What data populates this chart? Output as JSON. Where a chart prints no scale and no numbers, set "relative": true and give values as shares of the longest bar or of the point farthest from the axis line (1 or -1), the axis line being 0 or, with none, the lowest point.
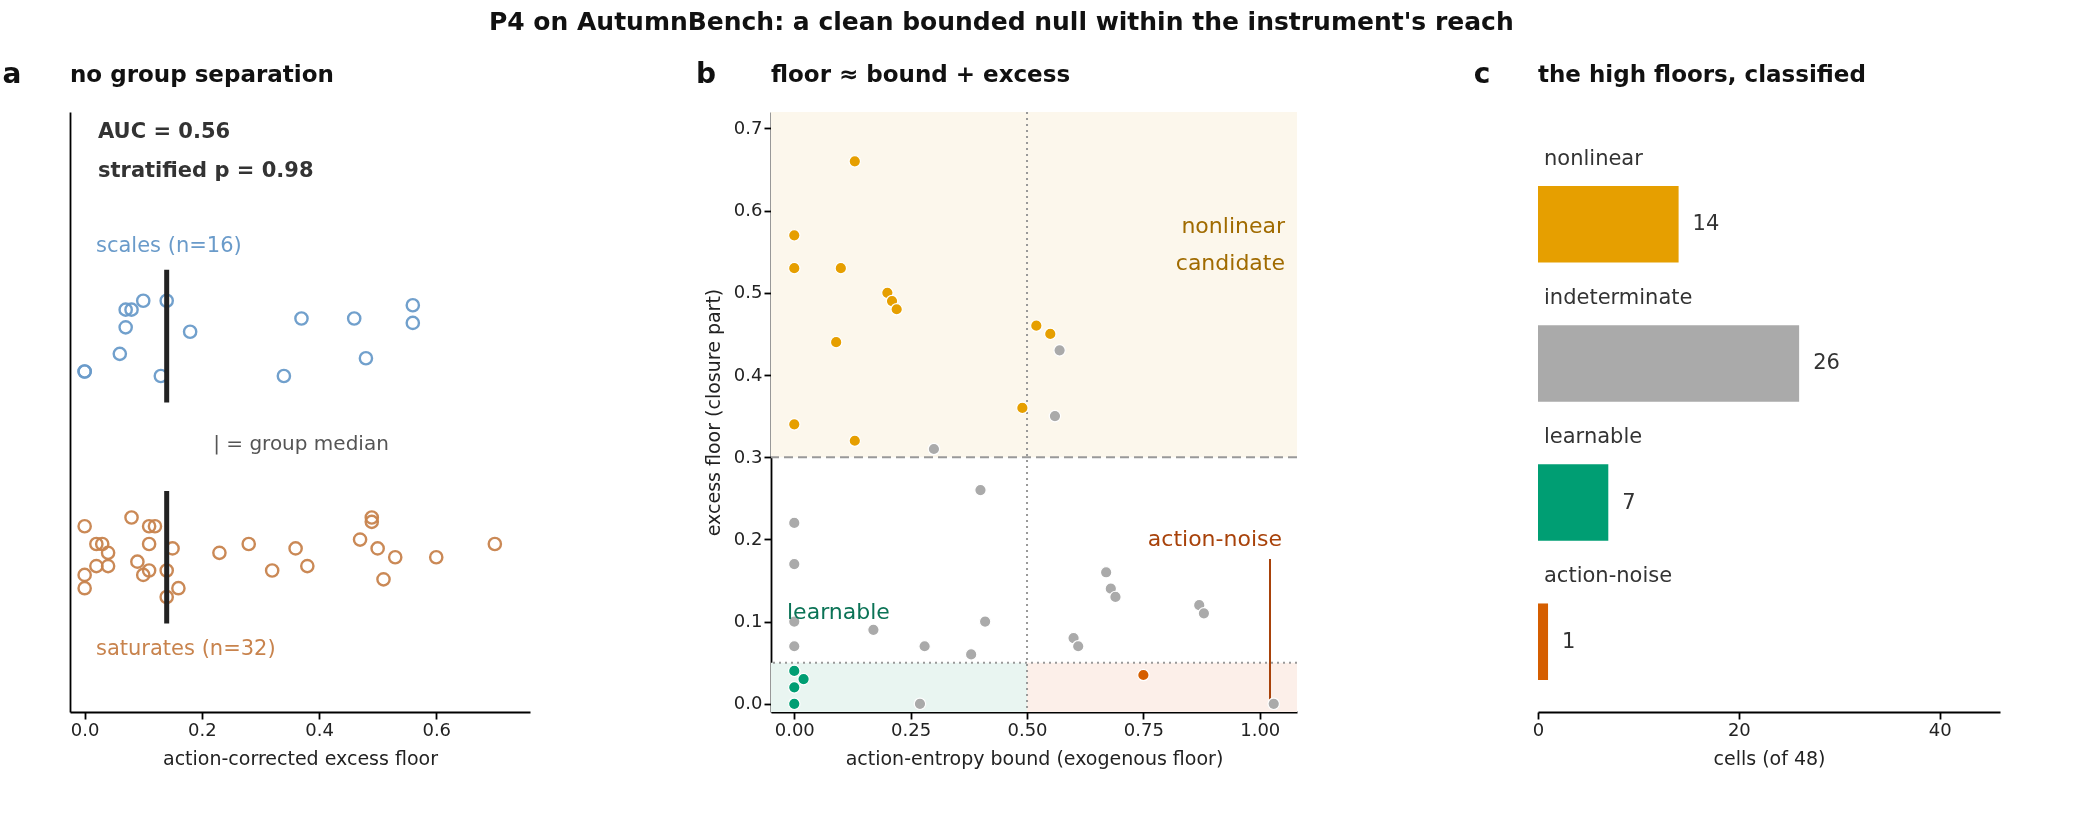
{
  "chart_data": [
    {
      "type": "scatter",
      "title": "no group separation",
      "xlabel": "action-corrected excess floor",
      "annotations": [
        "P4 on AutumnBench: a clean bounded null within the instrument's reach",
        "a",
        "AUC = 0.56",
        "stratified p = 0.98",
        "| = group median"
      ],
      "xlim": [
        -0.025,
        0.76
      ],
      "xticks": [
        {
          "value": 0,
          "label": "0.0"
        },
        {
          "value": 0.2,
          "label": "0.2"
        },
        {
          "value": 0.4,
          "label": "0.4"
        },
        {
          "value": 0.6,
          "label": "0.6"
        }
      ],
      "relative": true,
      "tick_labels": "x",
      "marker": "circle",
      "series": [
        {
          "name": "scales (n=16)",
          "color": "#6a9bca",
          "x": [
            0,
            0,
            0.06,
            0.07,
            0.07,
            0.08,
            0.1,
            0.13,
            0.14,
            0.18,
            0.37,
            0.34,
            0.46,
            0.48,
            0.56,
            0.56
          ],
          "values": [
            0.77,
            0.77,
            0.81,
            0.87,
            0.91,
            0.91,
            0.93,
            0.76,
            0.93,
            0.86,
            0.89,
            0.76,
            0.89,
            0.8,
            0.92,
            0.88
          ]
        },
        {
          "name": "saturates (n=32)",
          "color": "#c8834d",
          "x": [
            0,
            0.08,
            0.11,
            0.12,
            0.11,
            0.02,
            0.03,
            0.04,
            0.02,
            0.04,
            0,
            0,
            0.09,
            0.1,
            0.11,
            0.14,
            0.14,
            0.16,
            0.15,
            0.23,
            0.28,
            0.32,
            0.36,
            0.38,
            0.47,
            0.49,
            0.49,
            0.5,
            0.53,
            0.51,
            0.6,
            0.7
          ],
          "values": [
            0.42,
            0.44,
            0.42,
            0.42,
            0.38,
            0.38,
            0.38,
            0.36,
            0.33,
            0.33,
            0.31,
            0.28,
            0.34,
            0.31,
            0.32,
            0.32,
            0.26,
            0.28,
            0.37,
            0.36,
            0.38,
            0.32,
            0.37,
            0.33,
            0.39,
            0.44,
            0.43,
            0.37,
            0.35,
            0.3,
            0.35,
            0.38
          ]
        },
        {
          "type": "line",
          "marker": "none",
          "color": "#222222",
          "x": [
            0.14,
            0.14
          ],
          "values": [
            0.7,
            1
          ]
        },
        {
          "type": "line",
          "marker": "none",
          "color": "#222222",
          "x": [
            0.14,
            0.14
          ],
          "values": [
            0.2,
            0.5
          ]
        }
      ]
    },
    {
      "type": "scatter",
      "title": "floor ≈ bound + excess",
      "xlabel": "action-entropy bound  (exogenous floor)",
      "ylabel": "excess floor  (closure part)",
      "annotations": [
        "b"
      ],
      "xlim": [
        -0.05,
        1.08
      ],
      "ylim": [
        -0.01,
        0.72
      ],
      "xticks": [
        {
          "value": 0,
          "label": "0.00"
        },
        {
          "value": 0.25,
          "label": "0.25"
        },
        {
          "value": 0.5,
          "label": "0.50"
        },
        {
          "value": 0.75,
          "label": "0.75"
        },
        {
          "value": 1,
          "label": "1.00"
        }
      ],
      "yticks": [
        {
          "value": 0,
          "label": "0.0"
        },
        {
          "value": 0.1,
          "label": "0.1"
        },
        {
          "value": 0.2,
          "label": "0.2"
        },
        {
          "value": 0.3,
          "label": "0.3"
        },
        {
          "value": 0.4,
          "label": "0.4"
        },
        {
          "value": 0.5,
          "label": "0.5"
        },
        {
          "value": 0.6,
          "label": "0.6"
        },
        {
          "value": 0.7,
          "label": "0.7"
        }
      ],
      "marker": "circle",
      "bands": [
        {
          "axis": "y",
          "from": 0.3,
          "to": 0.72,
          "label": "nonlinear candidate",
          "color": "#fcf7ec"
        },
        {
          "axis": "x",
          "from": -0.05,
          "to": 0.5,
          "label": "learnable",
          "color": "#e9f5f1"
        },
        {
          "axis": "x",
          "from": 0.5,
          "to": 1.08,
          "label": "action-noise",
          "color": "#fcefe9"
        }
      ],
      "ref_lines": [
        {
          "axis": "x",
          "value": 0.5,
          "line_style": "dotted",
          "color": "#999999"
        },
        {
          "axis": "y",
          "value": 0.3,
          "line_style": "dashed",
          "color": "#999999"
        },
        {
          "axis": "y",
          "value": 0.05,
          "line_style": "dotted",
          "color": "#999999"
        }
      ],
      "series": [
        {
          "color": "#e69f00",
          "x": [
            0.13,
            0,
            0,
            0.1,
            0.2,
            0.21,
            0.22,
            0.09,
            0.52,
            0.55,
            0.49,
            0,
            0.13
          ],
          "values": [
            0.66,
            0.57,
            0.53,
            0.53,
            0.5,
            0.49,
            0.48,
            0.44,
            0.46,
            0.45,
            0.36,
            0.34,
            0.32
          ]
        },
        {
          "color": "#aaaaaa",
          "x": [
            0.57,
            0.56,
            0.3,
            0.4,
            0,
            0,
            0,
            0,
            0.17,
            0.28,
            0.38,
            0.41,
            0.27,
            0.67,
            0.68,
            0.69,
            0.6,
            0.61,
            0.87,
            0.88,
            1.03
          ],
          "values": [
            0.43,
            0.35,
            0.31,
            0.26,
            0.22,
            0.17,
            0.1,
            0.07,
            0.09,
            0.07,
            0.06,
            0.1,
            0,
            0.16,
            0.14,
            0.13,
            0.08,
            0.07,
            0.12,
            0.11,
            0
          ]
        },
        {
          "color": "#009e73",
          "x": [
            0,
            0.02,
            0,
            0
          ],
          "values": [
            0.04,
            0.03,
            0.02,
            0
          ]
        },
        {
          "color": "#d55e00",
          "x": [
            0.75
          ],
          "values": [
            0.035
          ]
        }
      ]
    },
    {
      "type": "bar",
      "orientation": "horizontal",
      "title": "the high floors, classified",
      "xlabel": "cells (of 48)",
      "annotations": [
        "c"
      ],
      "categories": [
        "nonlinear",
        "indeterminate",
        "learnable",
        "action-noise"
      ],
      "values": [
        14,
        26,
        7,
        1
      ],
      "colors": [
        "#e69f00",
        "#aaaaaa",
        "#009e73",
        "#d55e00"
      ],
      "data_labels": true,
      "xlim": [
        0,
        46
      ],
      "xticks": [
        0,
        20,
        40
      ]
    }
  ]
}
